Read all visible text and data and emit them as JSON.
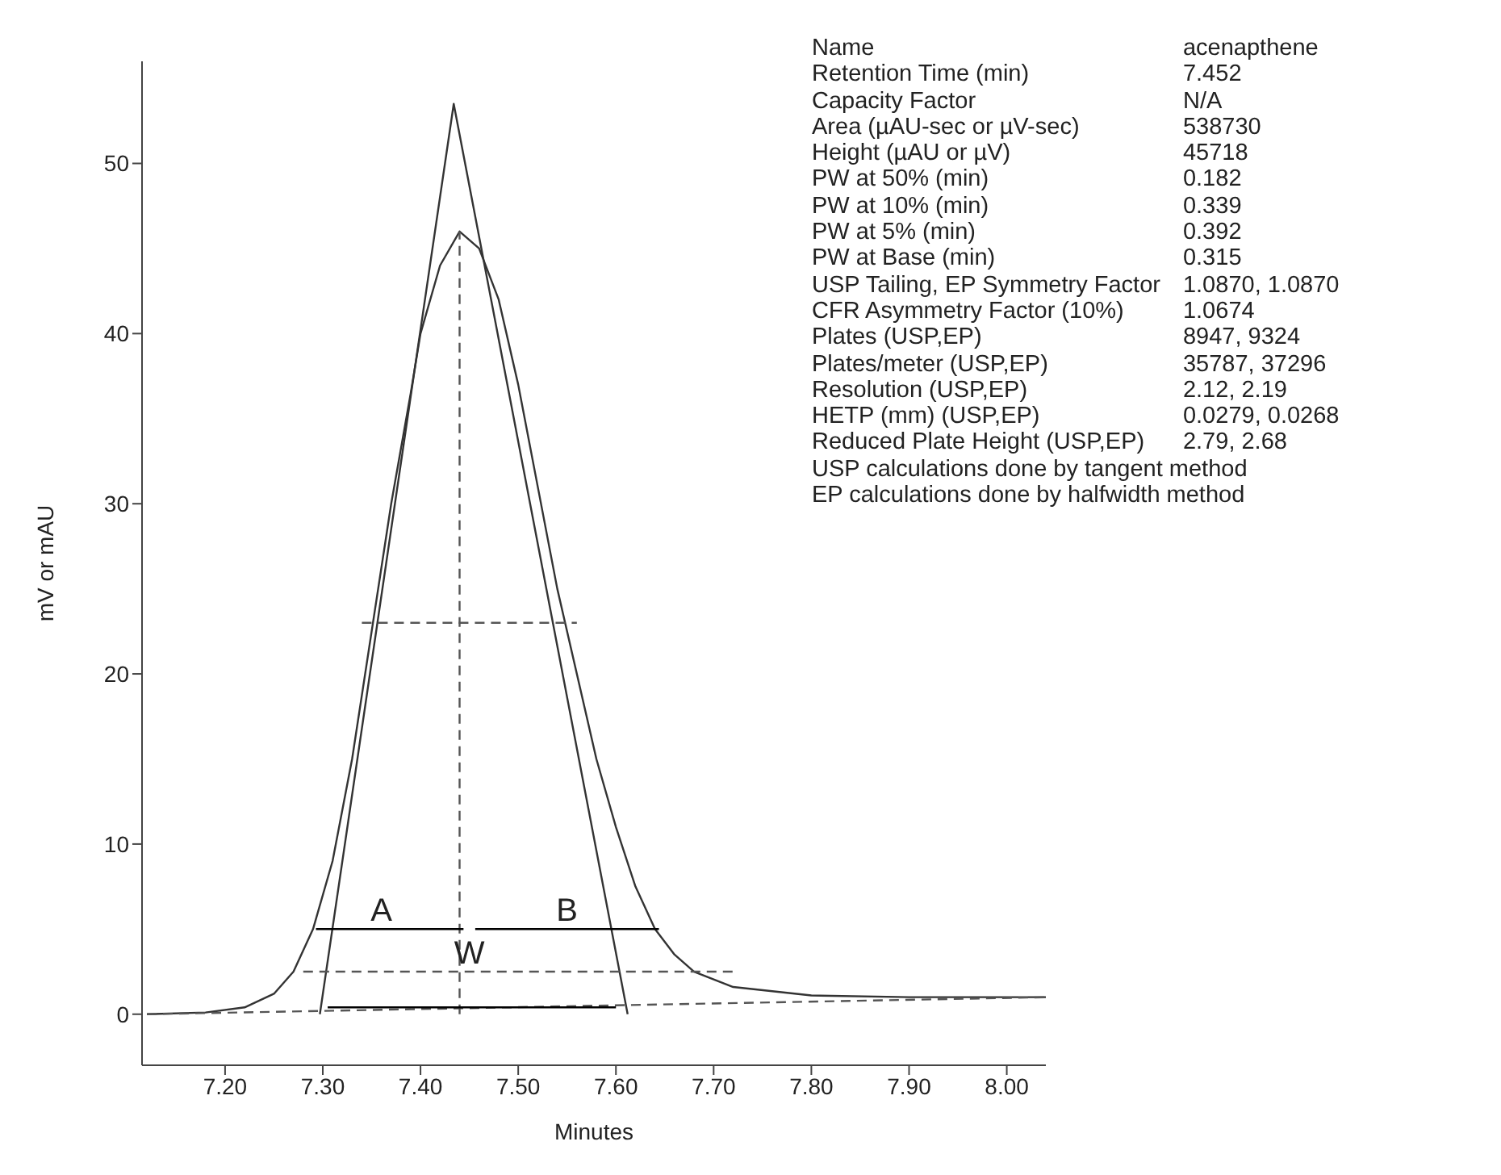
{
  "chart_data": {
    "type": "line",
    "xlabel": "Minutes",
    "ylabel": "mV or mAU",
    "xlim": [
      7.115,
      8.04
    ],
    "ylim": [
      -3,
      56
    ],
    "xticks": [
      {
        "value": 7.2,
        "label": "7.20"
      },
      {
        "value": 7.3,
        "label": "7.30"
      },
      {
        "value": 7.4,
        "label": "7.40"
      },
      {
        "value": 7.5,
        "label": "7.50"
      },
      {
        "value": 7.6,
        "label": "7.60"
      },
      {
        "value": 7.7,
        "label": "7.70"
      },
      {
        "value": 7.8,
        "label": "7.80"
      },
      {
        "value": 7.9,
        "label": "7.90"
      },
      {
        "value": 8.0,
        "label": "8.00"
      }
    ],
    "yticks": [
      0,
      10,
      20,
      30,
      40,
      50
    ],
    "grid": false,
    "legend": false,
    "marker": "none",
    "series": [
      {
        "color": "#333333",
        "line_style": "solid",
        "x": [
          7.12,
          7.18,
          7.22,
          7.25,
          7.27,
          7.29,
          7.31,
          7.33,
          7.35,
          7.37,
          7.39,
          7.4,
          7.42,
          7.44,
          7.46,
          7.48,
          7.5,
          7.52,
          7.54,
          7.56,
          7.58,
          7.6,
          7.62,
          7.64,
          7.66,
          7.68,
          7.72,
          7.8,
          7.9,
          8.04
        ],
        "values": [
          0,
          0.1,
          0.4,
          1.2,
          2.5,
          5,
          9,
          15,
          22.5,
          30,
          36.5,
          40,
          44,
          46,
          45,
          42,
          37,
          31,
          25,
          20,
          15,
          11,
          7.5,
          5,
          3.5,
          2.5,
          1.6,
          1.1,
          1,
          1
        ]
      },
      {
        "color": "#333333",
        "line_style": "solid",
        "x": [
          7.297,
          7.434,
          7.612
        ],
        "values": [
          0,
          53.5,
          0
        ]
      },
      {
        "color": "#555555",
        "line_style": "dashed",
        "x": [
          7.44,
          7.44
        ],
        "values": [
          0,
          46
        ]
      },
      {
        "color": "#555555",
        "line_style": "dashed",
        "x": [
          7.34,
          7.56
        ],
        "values": [
          23,
          23
        ]
      },
      {
        "color": "#555555",
        "line_style": "dashed",
        "x": [
          7.28,
          7.72
        ],
        "values": [
          2.5,
          2.5
        ]
      },
      {
        "color": "#555555",
        "line_style": "dashed",
        "x": [
          7.12,
          8.04
        ],
        "values": [
          0,
          1
        ]
      },
      {
        "color": "#000000",
        "line_style": "solid",
        "x": [
          7.293,
          7.444
        ],
        "values": [
          5,
          5
        ]
      },
      {
        "color": "#000000",
        "line_style": "solid",
        "x": [
          7.456,
          7.644
        ],
        "values": [
          5,
          5
        ]
      },
      {
        "color": "#000000",
        "line_style": "solid",
        "x": [
          7.305,
          7.6
        ],
        "values": [
          0.4,
          0.4
        ]
      }
    ],
    "annotations": [
      {
        "text": "A",
        "x": 7.36,
        "y": 5
      },
      {
        "text": "B",
        "x": 7.55,
        "y": 5
      },
      {
        "text": "W",
        "x": 7.45,
        "y": 2.5
      },
      "Name",
      "acenapthene",
      "Retention Time (min)",
      "7.452",
      "Capacity Factor",
      "N/A",
      "Area (µAU-sec or µV-sec)",
      "538730",
      "Height (µAU or µV)",
      "45718",
      "PW at 50% (min)",
      "0.182",
      "PW at 10% (min)",
      "0.339",
      "PW at 5% (min)",
      "0.392",
      "PW at Base (min)",
      "0.315",
      "USP Tailing, EP Symmetry Factor",
      "1.0870, 1.0870",
      "CFR Asymmetry Factor (10%)",
      "1.0674",
      "Plates (USP,EP)",
      "8947, 9324",
      "Plates/meter (USP,EP)",
      "35787, 37296",
      "Resolution (USP,EP)",
      "2.12, 2.19",
      "HETP (mm) (USP,EP)",
      "0.0279, 0.0268",
      "Reduced Plate Height (USP,EP)",
      "2.79, 2.68",
      "USP calculations done by tangent method",
      "EP calculations done by halfwidth method"
    ]
  }
}
